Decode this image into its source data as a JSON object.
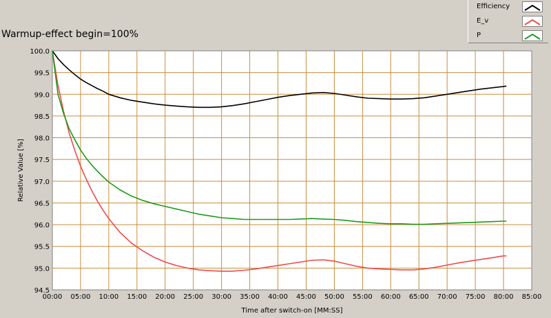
{
  "chart_data": {
    "type": "line",
    "title": "Warmup-effect begin=100%",
    "xlabel": "Time after switch-on [MM:SS]",
    "ylabel": "Relative Value [%]",
    "xlim": [
      0,
      85
    ],
    "ylim": [
      94.5,
      100.0
    ],
    "x_ticks": [
      0,
      5,
      10,
      15,
      20,
      25,
      30,
      35,
      40,
      45,
      50,
      55,
      60,
      65,
      70,
      75,
      80,
      85
    ],
    "x_tick_labels": [
      "00:00",
      "05:00",
      "10:00",
      "15:00",
      "20:00",
      "25:00",
      "30:00",
      "35:00",
      "40:00",
      "45:00",
      "50:00",
      "55:00",
      "60:00",
      "65:00",
      "70:00",
      "75:00",
      "80:00",
      "85:00"
    ],
    "y_ticks": [
      94.5,
      95.0,
      95.5,
      96.0,
      96.5,
      97.0,
      97.5,
      98.0,
      98.5,
      99.0,
      99.5,
      100.0
    ],
    "y_tick_labels": [
      "94.5",
      "95.0",
      "95.5",
      "96.0",
      "96.5",
      "97.0",
      "97.5",
      "98.0",
      "98.5",
      "99.0",
      "99.5",
      "100.0"
    ],
    "grid": true,
    "legend_position": "top-right",
    "plot_background": "#ffffff",
    "grid_color": "#c88c3c",
    "series": [
      {
        "name": "Efficiency",
        "color": "#000000",
        "x": [
          0,
          1,
          2,
          3,
          4,
          5,
          6,
          7,
          8,
          9,
          10,
          12,
          14,
          16,
          18,
          20,
          22,
          24,
          26,
          28,
          30,
          32,
          34,
          36,
          38,
          40,
          42,
          44,
          46,
          48,
          50,
          52,
          54,
          56,
          58,
          60,
          62,
          64,
          66,
          68,
          70,
          72,
          74,
          76,
          78,
          80,
          80.5
        ],
        "y": [
          100.0,
          99.82,
          99.68,
          99.56,
          99.45,
          99.35,
          99.27,
          99.2,
          99.13,
          99.07,
          99.0,
          98.92,
          98.86,
          98.82,
          98.78,
          98.75,
          98.73,
          98.71,
          98.7,
          98.7,
          98.71,
          98.74,
          98.78,
          98.83,
          98.88,
          98.93,
          98.97,
          99.0,
          99.03,
          99.04,
          99.02,
          98.98,
          98.94,
          98.91,
          98.9,
          98.89,
          98.89,
          98.9,
          98.92,
          98.96,
          99.0,
          99.04,
          99.08,
          99.12,
          99.15,
          99.18,
          99.19
        ]
      },
      {
        "name": "E_v",
        "color": "#ee4a4a",
        "x": [
          0,
          1,
          2,
          3,
          4,
          5,
          6,
          7,
          8,
          9,
          10,
          12,
          14,
          16,
          18,
          20,
          22,
          24,
          26,
          28,
          30,
          32,
          34,
          36,
          38,
          40,
          42,
          44,
          46,
          48,
          50,
          52,
          54,
          56,
          58,
          60,
          62,
          64,
          66,
          68,
          70,
          72,
          74,
          76,
          78,
          80,
          80.5
        ],
        "y": [
          100.0,
          99.2,
          98.6,
          98.1,
          97.7,
          97.35,
          97.05,
          96.78,
          96.54,
          96.33,
          96.14,
          95.82,
          95.58,
          95.4,
          95.25,
          95.14,
          95.06,
          95.0,
          94.96,
          94.94,
          94.93,
          94.93,
          94.95,
          94.98,
          95.02,
          95.06,
          95.1,
          95.14,
          95.18,
          95.19,
          95.16,
          95.1,
          95.04,
          95.0,
          94.98,
          94.97,
          94.96,
          94.96,
          94.98,
          95.02,
          95.07,
          95.12,
          95.16,
          95.2,
          95.24,
          95.28,
          95.28
        ]
      },
      {
        "name": "P",
        "color": "#1a9a1a",
        "x": [
          0,
          1,
          2,
          3,
          4,
          5,
          6,
          7,
          8,
          9,
          10,
          12,
          14,
          16,
          18,
          20,
          22,
          24,
          26,
          28,
          30,
          32,
          34,
          36,
          38,
          40,
          42,
          44,
          46,
          48,
          50,
          52,
          54,
          56,
          58,
          60,
          62,
          64,
          66,
          68,
          70,
          72,
          74,
          76,
          78,
          80,
          80.5
        ],
        "y": [
          100.0,
          99.0,
          98.55,
          98.2,
          97.95,
          97.72,
          97.53,
          97.37,
          97.23,
          97.1,
          96.98,
          96.8,
          96.66,
          96.56,
          96.48,
          96.42,
          96.36,
          96.3,
          96.24,
          96.2,
          96.16,
          96.14,
          96.12,
          96.12,
          96.12,
          96.12,
          96.12,
          96.13,
          96.14,
          96.13,
          96.12,
          96.1,
          96.07,
          96.05,
          96.03,
          96.02,
          96.02,
          96.01,
          96.01,
          96.02,
          96.03,
          96.04,
          96.05,
          96.06,
          96.07,
          96.08,
          96.08
        ]
      }
    ]
  }
}
